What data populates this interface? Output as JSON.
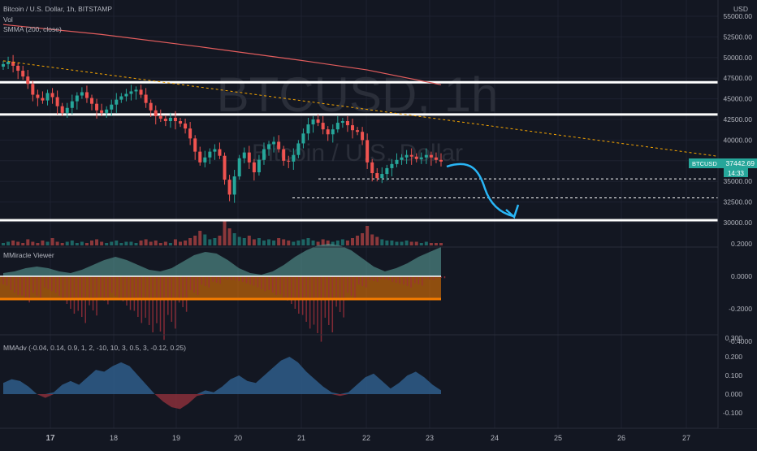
{
  "header": {
    "symbol_line": "Bitcoin / U.S. Dollar, 1h, BITSTAMP",
    "vol_label": "Vol",
    "smma_label": "SMMA (200, close)"
  },
  "watermark": {
    "line1": "BTCUSD, 1h",
    "line2": "Bitcoin / U.S. Dollar"
  },
  "price_axis": {
    "currency": "USD",
    "ticks": [
      "55000.00",
      "52500.00",
      "50000.00",
      "47500.00",
      "45000.00",
      "42500.00",
      "40000.00",
      "37500.00",
      "35000.00",
      "32500.00",
      "30000.00"
    ]
  },
  "price_badge": {
    "symbol": "BTCUSD",
    "price": "37442.69",
    "countdown": "14:33"
  },
  "pane2": {
    "title": "MMiracle Viewer",
    "ticks": [
      "0.2000",
      "0.0000",
      "-0.2000",
      "-0.4000"
    ]
  },
  "pane3": {
    "title": "MMAdv (-0.04, 0.14, 0.9, 1, 2, -10, 10, 3, 0.5, 3, -0.12, 0.25)",
    "ticks": [
      "0.300",
      "0.200",
      "0.100",
      "0.000",
      "-0.100"
    ]
  },
  "time_axis": {
    "labels": [
      "17",
      "18",
      "19",
      "20",
      "21",
      "22",
      "23",
      "24",
      "25",
      "26",
      "27"
    ]
  },
  "colors": {
    "background": "#131722",
    "grid": "#1e2230",
    "text": "#b2b5be",
    "up": "#26a69a",
    "down": "#ef5350",
    "smma": "#e35d5d",
    "trendline": "#f7a600",
    "drawing": "#29b6f6",
    "badge": "#26a69a",
    "orange_band": "#f57c00"
  },
  "chart_data": [
    {
      "type": "candlestick",
      "symbol": "BTCUSD",
      "interval": "1h",
      "exchange": "BITSTAMP",
      "x_ticks": [
        "17",
        "18",
        "19",
        "20",
        "21",
        "22",
        "23",
        "24",
        "25",
        "26",
        "27"
      ],
      "ylim": [
        28000,
        56000
      ],
      "last_price": 37442.69,
      "close": [
        49200,
        49500,
        49000,
        48400,
        47700,
        46800,
        45500,
        45100,
        44800,
        45700,
        45200,
        44100,
        43300,
        43900,
        44700,
        45400,
        45800,
        45100,
        44400,
        43600,
        43300,
        43700,
        44300,
        44900,
        45300,
        45600,
        45900,
        46100,
        45500,
        44500,
        43600,
        42900,
        42600,
        42300,
        42700,
        42300,
        42000,
        41400,
        40200,
        38600,
        37300,
        37900,
        38600,
        38900,
        38100,
        35200,
        33400,
        35600,
        37800,
        38500,
        37300,
        36100,
        37600,
        38900,
        39500,
        39800,
        38900,
        37500,
        37400,
        38200,
        39600,
        40800,
        41900,
        42500,
        42100,
        41300,
        40700,
        41300,
        42100,
        42300,
        41800,
        41200,
        41000,
        40000,
        37300,
        36000,
        35400,
        35900,
        36600,
        37100,
        37600,
        37900,
        38200,
        38000,
        37700,
        37900,
        38200,
        37900,
        37600,
        37400
      ],
      "horizontal_levels": [
        47000,
        43100,
        30300
      ],
      "dashed_levels": [
        35300,
        33000
      ],
      "smma_200": [
        {
          "x": 0,
          "y": 54000
        },
        {
          "x": 20,
          "y": 52800
        },
        {
          "x": 40,
          "y": 51300
        },
        {
          "x": 60,
          "y": 49700
        },
        {
          "x": 74,
          "y": 48500
        },
        {
          "x": 89,
          "y": 46700
        }
      ],
      "trendline": {
        "from": {
          "x": 0,
          "y": 49600
        },
        "to": {
          "x": 230,
          "y": 31300
        }
      },
      "volume": [
        2,
        3,
        4,
        3,
        2,
        5,
        3,
        2,
        4,
        3,
        6,
        3,
        2,
        3,
        4,
        2,
        3,
        2,
        4,
        5,
        3,
        2,
        3,
        4,
        2,
        3,
        3,
        2,
        4,
        5,
        3,
        4,
        2,
        3,
        2,
        5,
        3,
        4,
        6,
        8,
        12,
        9,
        5,
        6,
        8,
        20,
        14,
        10,
        7,
        6,
        8,
        5,
        6,
        4,
        5,
        4,
        6,
        5,
        4,
        3,
        4,
        5,
        6,
        4,
        3,
        5,
        4,
        3,
        4,
        5,
        4,
        6,
        8,
        10,
        16,
        9,
        7,
        5,
        4,
        4,
        3,
        3,
        4,
        3,
        3,
        2,
        3,
        2,
        2,
        2
      ],
      "volume_scale_max": 20
    },
    {
      "type": "area",
      "name": "MMiracle Viewer",
      "y_ticks": [
        0.2,
        0.0,
        -0.2,
        -0.4
      ],
      "ylim": [
        -0.45,
        0.25
      ],
      "band": [
        -0.14,
        0.0
      ],
      "series": [
        {
          "values": [
            0.02,
            0.03,
            0.05,
            0.06,
            0.05,
            0.03,
            0.02,
            0.04,
            0.07,
            0.1,
            0.12,
            0.1,
            0.07,
            0.04,
            0.03,
            0.05,
            0.09,
            0.13,
            0.15,
            0.14,
            0.1,
            0.05,
            0.02,
            0.01,
            0.03,
            0.07,
            0.12,
            0.16,
            0.19,
            0.2,
            0.19,
            0.16,
            0.11,
            0.06,
            0.03,
            0.05,
            0.08,
            0.12,
            0.15,
            0.18
          ]
        },
        {
          "values": [
            -0.05,
            -0.1,
            -0.14,
            -0.12,
            -0.08,
            -0.12,
            -0.2,
            -0.25,
            -0.21,
            -0.15,
            -0.12,
            -0.18,
            -0.25,
            -0.3,
            -0.34,
            -0.28,
            -0.19,
            -0.1,
            -0.06,
            -0.04,
            -0.02,
            -0.03,
            -0.05,
            -0.08,
            -0.1,
            -0.13,
            -0.2,
            -0.28,
            -0.35,
            -0.3,
            -0.22,
            -0.12,
            -0.06,
            -0.03,
            -0.02,
            -0.04,
            -0.06,
            -0.05,
            -0.02,
            -0.01
          ]
        }
      ]
    },
    {
      "type": "area",
      "name": "MMAdv",
      "y_ticks": [
        0.3,
        0.2,
        0.1,
        0.0,
        -0.1
      ],
      "ylim": [
        -0.15,
        0.31
      ],
      "values": [
        0.06,
        0.08,
        0.07,
        0.04,
        0.0,
        -0.02,
        0.01,
        0.05,
        0.07,
        0.05,
        0.09,
        0.13,
        0.12,
        0.15,
        0.17,
        0.15,
        0.1,
        0.05,
        0.0,
        -0.04,
        -0.07,
        -0.08,
        -0.05,
        -0.01,
        0.02,
        0.01,
        0.04,
        0.08,
        0.1,
        0.07,
        0.06,
        0.1,
        0.14,
        0.18,
        0.2,
        0.17,
        0.12,
        0.08,
        0.04,
        0.01,
        -0.01,
        0.01,
        0.05,
        0.09,
        0.11,
        0.07,
        0.03,
        0.06,
        0.1,
        0.12,
        0.09,
        0.05,
        0.02
      ]
    }
  ]
}
